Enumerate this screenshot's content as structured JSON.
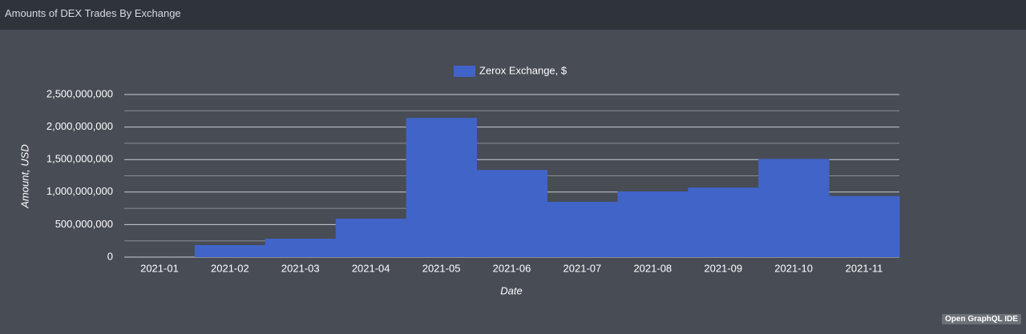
{
  "chart_data": {
    "type": "bar",
    "title": "Amounts of DEX Trades By Exchange",
    "x_label": "Date",
    "y_label": "Amount, USD",
    "categories": [
      "2021-01",
      "2021-02",
      "2021-03",
      "2021-04",
      "2021-05",
      "2021-06",
      "2021-07",
      "2021-08",
      "2021-09",
      "2021-10",
      "2021-11"
    ],
    "series": [
      {
        "name": "Zerox Exchange, $",
        "color": "#4064c8",
        "values": [
          0,
          185000000,
          283000000,
          590000000,
          2140000000,
          1340000000,
          850000000,
          1010000000,
          1070000000,
          1510000000,
          940000000
        ]
      }
    ],
    "ylim": [
      0,
      2500000000
    ],
    "yticks": [
      0,
      {
        "value": 500000000,
        "label": "500,000,000"
      },
      {
        "value": 1000000000,
        "label": "1,000,000,000"
      },
      {
        "value": 1500000000,
        "label": "1,500,000,000"
      },
      {
        "value": 2000000000,
        "label": "2,000,000,000"
      },
      {
        "value": 2500000000,
        "label": "2,500,000,000"
      }
    ],
    "grid": true,
    "minor_grid": true,
    "legend": "top"
  },
  "button": "Open GraphQL IDE"
}
